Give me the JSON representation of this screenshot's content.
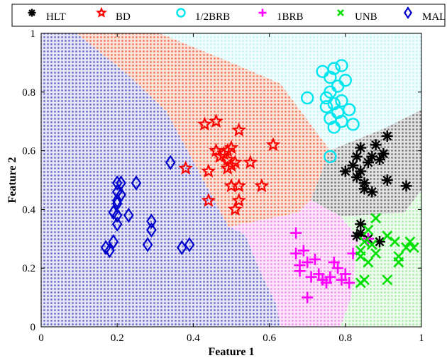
{
  "chart_data": {
    "type": "scatter",
    "title": "",
    "xlabel": "Feature 1",
    "ylabel": "Feature 2",
    "xlim": [
      0,
      1
    ],
    "ylim": [
      0,
      1
    ],
    "xticks": [
      "0",
      "0.2",
      "0.4",
      "0.6",
      "0.8",
      "1"
    ],
    "yticks": [
      "0",
      "0.2",
      "0.4",
      "0.6",
      "0.8",
      "1"
    ],
    "grid": false,
    "legend": "top-horizontal",
    "series": [
      {
        "name": "HLT",
        "marker": "asterisk",
        "color": "#000000",
        "region_color": "#8c8c8c",
        "points": [
          [
            0.8,
            0.53
          ],
          [
            0.82,
            0.55
          ],
          [
            0.83,
            0.58
          ],
          [
            0.84,
            0.61
          ],
          [
            0.83,
            0.51
          ],
          [
            0.85,
            0.49
          ],
          [
            0.86,
            0.56
          ],
          [
            0.87,
            0.58
          ],
          [
            0.88,
            0.62
          ],
          [
            0.89,
            0.57
          ],
          [
            0.85,
            0.47
          ],
          [
            0.87,
            0.46
          ],
          [
            0.9,
            0.59
          ],
          [
            0.91,
            0.65
          ],
          [
            0.91,
            0.5
          ],
          [
            0.96,
            0.48
          ],
          [
            0.84,
            0.53
          ],
          [
            0.84,
            0.35
          ],
          [
            0.83,
            0.31
          ],
          [
            0.86,
            0.3
          ],
          [
            0.89,
            0.29
          ],
          [
            0.84,
            0.32
          ]
        ]
      },
      {
        "name": "BD",
        "marker": "star",
        "color": "#ff0000",
        "region_color": "#f08060",
        "points": [
          [
            0.43,
            0.69
          ],
          [
            0.46,
            0.7
          ],
          [
            0.52,
            0.67
          ],
          [
            0.61,
            0.62
          ],
          [
            0.38,
            0.54
          ],
          [
            0.44,
            0.53
          ],
          [
            0.46,
            0.6
          ],
          [
            0.47,
            0.58
          ],
          [
            0.48,
            0.59
          ],
          [
            0.49,
            0.6
          ],
          [
            0.5,
            0.61
          ],
          [
            0.49,
            0.57
          ],
          [
            0.5,
            0.55
          ],
          [
            0.51,
            0.56
          ],
          [
            0.55,
            0.56
          ],
          [
            0.5,
            0.48
          ],
          [
            0.52,
            0.48
          ],
          [
            0.58,
            0.48
          ],
          [
            0.44,
            0.43
          ],
          [
            0.51,
            0.4
          ],
          [
            0.52,
            0.43
          ],
          [
            0.49,
            0.54
          ]
        ]
      },
      {
        "name": "1/2BRB",
        "marker": "circle",
        "color": "#00e5ee",
        "region_color": "#c0f4f4",
        "points": [
          [
            0.7,
            0.78
          ],
          [
            0.74,
            0.87
          ],
          [
            0.76,
            0.85
          ],
          [
            0.77,
            0.88
          ],
          [
            0.79,
            0.89
          ],
          [
            0.8,
            0.84
          ],
          [
            0.78,
            0.82
          ],
          [
            0.76,
            0.8
          ],
          [
            0.75,
            0.78
          ],
          [
            0.77,
            0.76
          ],
          [
            0.79,
            0.77
          ],
          [
            0.75,
            0.75
          ],
          [
            0.78,
            0.73
          ],
          [
            0.81,
            0.74
          ],
          [
            0.76,
            0.71
          ],
          [
            0.79,
            0.7
          ],
          [
            0.82,
            0.69
          ],
          [
            0.77,
            0.68
          ],
          [
            0.76,
            0.58
          ]
        ]
      },
      {
        "name": "1BRB",
        "marker": "plus",
        "color": "#ff00ff",
        "region_color": "#f0a0e8",
        "points": [
          [
            0.67,
            0.32
          ],
          [
            0.67,
            0.25
          ],
          [
            0.69,
            0.26
          ],
          [
            0.7,
            0.22
          ],
          [
            0.68,
            0.21
          ],
          [
            0.72,
            0.23
          ],
          [
            0.68,
            0.19
          ],
          [
            0.71,
            0.17
          ],
          [
            0.73,
            0.18
          ],
          [
            0.74,
            0.16
          ],
          [
            0.77,
            0.22
          ],
          [
            0.78,
            0.2
          ],
          [
            0.8,
            0.18
          ],
          [
            0.81,
            0.15
          ],
          [
            0.79,
            0.16
          ],
          [
            0.76,
            0.17
          ],
          [
            0.82,
            0.25
          ],
          [
            0.86,
            0.3
          ],
          [
            0.7,
            0.1
          ],
          [
            0.75,
            0.15
          ]
        ]
      },
      {
        "name": "UNB",
        "marker": "x",
        "color": "#00e000",
        "region_color": "#b8f0b8",
        "points": [
          [
            0.88,
            0.37
          ],
          [
            0.86,
            0.33
          ],
          [
            0.85,
            0.29
          ],
          [
            0.87,
            0.28
          ],
          [
            0.88,
            0.25
          ],
          [
            0.84,
            0.26
          ],
          [
            0.84,
            0.24
          ],
          [
            0.86,
            0.22
          ],
          [
            0.91,
            0.31
          ],
          [
            0.93,
            0.29
          ],
          [
            0.94,
            0.24
          ],
          [
            0.96,
            0.27
          ],
          [
            0.97,
            0.29
          ],
          [
            0.98,
            0.27
          ],
          [
            0.94,
            0.22
          ],
          [
            0.91,
            0.16
          ],
          [
            0.85,
            0.16
          ],
          [
            0.84,
            0.15
          ]
        ]
      },
      {
        "name": "MAL",
        "marker": "diamond",
        "color": "#0000cc",
        "region_color": "#9090d8",
        "points": [
          [
            0.2,
            0.49
          ],
          [
            0.21,
            0.49
          ],
          [
            0.25,
            0.49
          ],
          [
            0.2,
            0.46
          ],
          [
            0.21,
            0.45
          ],
          [
            0.2,
            0.43
          ],
          [
            0.2,
            0.42
          ],
          [
            0.19,
            0.39
          ],
          [
            0.23,
            0.38
          ],
          [
            0.2,
            0.38
          ],
          [
            0.2,
            0.35
          ],
          [
            0.29,
            0.36
          ],
          [
            0.29,
            0.33
          ],
          [
            0.19,
            0.29
          ],
          [
            0.17,
            0.27
          ],
          [
            0.18,
            0.26
          ],
          [
            0.28,
            0.28
          ],
          [
            0.37,
            0.27
          ],
          [
            0.39,
            0.28
          ],
          [
            0.34,
            0.56
          ]
        ]
      }
    ]
  }
}
